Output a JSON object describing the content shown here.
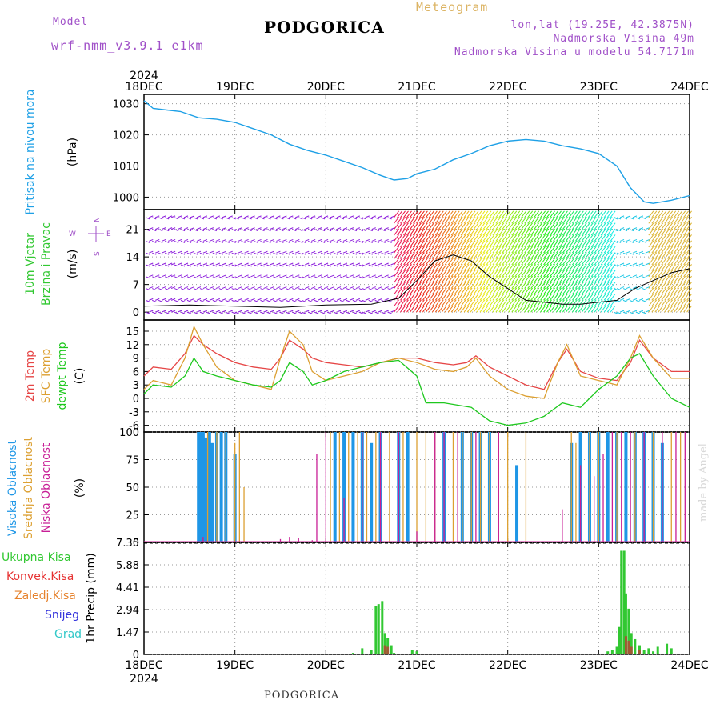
{
  "header": {
    "model_label": "Model",
    "model_name": "wrf-nmm_v3.9.1 e1km",
    "title": "PODGORICA",
    "meteogram": "Meteogram",
    "lonlat": "lon,lat (19.25E, 42.3875N)",
    "elevation": "Nadmorska Visina 49m",
    "model_elevation": "Nadmorska Visina u modelu 54.7171m",
    "footer_title": "PODGORICA",
    "watermark": "made by Angel"
  },
  "colors": {
    "pressure": "#1ea0e6",
    "temp2m": "#e64646",
    "sfc": "#dca032",
    "dewpt": "#1ec81e",
    "high_cloud": "#1e96e6",
    "mid_cloud": "#dca032",
    "low_cloud": "#c81e96",
    "wind_calm": "#8c1edc",
    "total_precip": "#32c832",
    "conv_precip": "#e63232",
    "frozen_precip": "#e6822d",
    "snow": "#3232dc",
    "grad": "#32c8c8",
    "header_purple": "#a050c8",
    "header_orange": "#dcb464"
  },
  "chart_data": [
    {
      "type": "line",
      "panel": "pressure",
      "ylabel": [
        "Pritisak na nivou mora",
        "(hPa)"
      ],
      "x_year": "2024",
      "x_ticks": [
        "18DEC",
        "19DEC",
        "20DEC",
        "21DEC",
        "22DEC",
        "23DEC",
        "24DEC"
      ],
      "x_range_days": [
        0,
        6
      ],
      "ylim": [
        996,
        1033
      ],
      "yticks": [
        1000,
        1010,
        1020,
        1030
      ],
      "series": [
        {
          "key": "pressure",
          "x": [
            0,
            0.1,
            0.25,
            0.4,
            0.6,
            0.8,
            1.0,
            1.2,
            1.4,
            1.6,
            1.8,
            2.0,
            2.2,
            2.4,
            2.6,
            2.75,
            2.9,
            3.0,
            3.2,
            3.4,
            3.6,
            3.8,
            4.0,
            4.2,
            4.4,
            4.6,
            4.8,
            5.0,
            5.2,
            5.35,
            5.5,
            5.6,
            5.8,
            6.0
          ],
          "y": [
            1031,
            1028.5,
            1028,
            1027.5,
            1025.5,
            1025,
            1024,
            1022,
            1020,
            1017,
            1015,
            1013.5,
            1011.5,
            1009.5,
            1007,
            1005.5,
            1006,
            1007.5,
            1009,
            1012,
            1014,
            1016.5,
            1018,
            1018.5,
            1018,
            1016.5,
            1015.5,
            1014,
            1010,
            1003,
            998.5,
            998,
            999,
            1000.5
          ]
        }
      ]
    },
    {
      "type": "line",
      "panel": "wind",
      "ylabel": [
        "10m Vjetar",
        "Brzina i Pravac",
        "(m/s)"
      ],
      "compass": [
        "N",
        "E",
        "S",
        "W"
      ],
      "ylim": [
        -2,
        26
      ],
      "yticks": [
        0,
        7,
        14,
        21
      ],
      "series": [
        {
          "key": "wind_speed",
          "x": [
            0,
            0.5,
            1.0,
            1.5,
            2.0,
            2.5,
            2.8,
            3.0,
            3.2,
            3.4,
            3.6,
            3.8,
            4.0,
            4.2,
            4.4,
            4.6,
            4.8,
            5.0,
            5.2,
            5.4,
            5.6,
            5.8,
            6.0
          ],
          "y": [
            1.5,
            1.8,
            1.5,
            1.2,
            1.8,
            2.0,
            3.5,
            8.0,
            13.0,
            14.5,
            13.0,
            9.0,
            6.0,
            3.0,
            2.5,
            2.0,
            2.0,
            2.5,
            3.0,
            6.0,
            8.0,
            10.0,
            11.0
          ]
        }
      ]
    },
    {
      "type": "line",
      "panel": "temperature",
      "ylabel": [
        "2m Temp",
        "SFC Temp",
        "dewpt Temp",
        "(C)"
      ],
      "ylim": [
        -7.5,
        17.5
      ],
      "yticks": [
        -6,
        -3,
        0,
        3,
        6,
        9,
        12,
        15
      ],
      "series": [
        {
          "key": "temp2m",
          "name": "2m Temp",
          "x": [
            0,
            0.1,
            0.3,
            0.45,
            0.55,
            0.65,
            0.8,
            1.0,
            1.2,
            1.4,
            1.5,
            1.6,
            1.75,
            1.85,
            2.0,
            2.2,
            2.4,
            2.6,
            2.8,
            3.0,
            3.2,
            3.4,
            3.55,
            3.65,
            3.8,
            4.0,
            4.2,
            4.4,
            4.55,
            4.65,
            4.8,
            5.0,
            5.2,
            5.35,
            5.45,
            5.6,
            5.8,
            6.0
          ],
          "y": [
            5,
            7,
            6.5,
            10,
            14,
            12,
            10,
            8,
            7,
            6.5,
            9,
            13,
            11,
            9,
            8,
            7.5,
            7,
            8,
            9,
            9,
            8,
            7.5,
            8,
            9.5,
            7,
            5,
            3,
            2,
            8,
            11,
            6,
            4.5,
            4,
            8,
            13,
            9,
            6,
            6
          ]
        },
        {
          "key": "sfc",
          "name": "SFC Temp",
          "x": [
            0,
            0.1,
            0.3,
            0.45,
            0.55,
            0.65,
            0.8,
            1.0,
            1.2,
            1.4,
            1.5,
            1.6,
            1.75,
            1.85,
            2.0,
            2.2,
            2.4,
            2.6,
            2.8,
            3.0,
            3.2,
            3.4,
            3.55,
            3.65,
            3.8,
            4.0,
            4.2,
            4.4,
            4.55,
            4.65,
            4.8,
            5.0,
            5.2,
            5.35,
            5.45,
            5.6,
            5.8,
            6.0
          ],
          "y": [
            2,
            4,
            3,
            9,
            16,
            12,
            7,
            4,
            3,
            2,
            9,
            15,
            12,
            6,
            4,
            5,
            6,
            8,
            9,
            8,
            6.5,
            6,
            7,
            9,
            5,
            2,
            0.5,
            0,
            8,
            12,
            5,
            4,
            3,
            9,
            14,
            9,
            4.5,
            4.5
          ]
        },
        {
          "key": "dewpt",
          "name": "dewpt Temp",
          "x": [
            0,
            0.1,
            0.3,
            0.45,
            0.55,
            0.65,
            0.8,
            1.0,
            1.2,
            1.4,
            1.5,
            1.6,
            1.75,
            1.85,
            2.0,
            2.2,
            2.4,
            2.6,
            2.8,
            3.0,
            3.1,
            3.3,
            3.6,
            3.8,
            4.0,
            4.2,
            4.4,
            4.6,
            4.8,
            5.0,
            5.2,
            5.35,
            5.45,
            5.6,
            5.8,
            6.0
          ],
          "y": [
            1,
            3,
            2.5,
            5,
            9,
            6,
            5,
            4,
            3,
            2.5,
            4,
            8,
            6,
            3,
            4,
            6,
            7,
            8,
            8.5,
            5,
            -1,
            -1,
            -2,
            -5,
            -6,
            -5.5,
            -4,
            -1,
            -2,
            2,
            5,
            9,
            10,
            5,
            0,
            -2
          ]
        }
      ]
    },
    {
      "type": "bar",
      "panel": "clouds",
      "ylabel": [
        "Visoka Oblacnost",
        "Srednja Oblacnost",
        "Niska Oblacnost",
        "(%)"
      ],
      "ylim": [
        0,
        100
      ],
      "yticks": [
        0,
        25,
        50,
        75,
        100
      ],
      "series": [
        {
          "key": "high_cloud",
          "name": "Visoka Oblacnost",
          "x": [
            0.6,
            0.62,
            0.65,
            0.68,
            0.72,
            0.75,
            0.8,
            0.85,
            0.9,
            1.0,
            2.1,
            2.2,
            2.3,
            2.4,
            2.5,
            2.6,
            2.8,
            2.9,
            3.3,
            3.5,
            3.6,
            3.7,
            3.8,
            4.1,
            4.7,
            4.8,
            4.9,
            5.0,
            5.1,
            5.2,
            5.3,
            5.4,
            5.5,
            5.6,
            5.7
          ],
          "values": [
            100,
            100,
            100,
            95,
            100,
            90,
            100,
            100,
            100,
            80,
            100,
            100,
            100,
            100,
            90,
            100,
            100,
            100,
            100,
            100,
            100,
            100,
            100,
            70,
            90,
            100,
            100,
            100,
            100,
            100,
            100,
            100,
            100,
            100,
            90
          ]
        },
        {
          "key": "mid_cloud",
          "name": "Srednja Oblacnost",
          "x": [
            0.7,
            0.8,
            0.9,
            1.0,
            1.05,
            1.1,
            2.05,
            2.15,
            2.25,
            2.35,
            2.45,
            2.55,
            2.7,
            2.85,
            3.0,
            3.1,
            3.2,
            3.4,
            3.5,
            3.6,
            3.7,
            3.8,
            3.9,
            4.0,
            4.2,
            4.7,
            4.75,
            4.9,
            5.0,
            5.2,
            5.4,
            5.6,
            5.8,
            5.9
          ],
          "values": [
            100,
            100,
            100,
            90,
            100,
            50,
            100,
            100,
            100,
            100,
            100,
            100,
            100,
            100,
            100,
            100,
            100,
            100,
            100,
            100,
            100,
            100,
            100,
            100,
            100,
            100,
            90,
            100,
            100,
            100,
            100,
            100,
            100,
            100
          ]
        },
        {
          "key": "low_cloud",
          "name": "Niska Oblacnost",
          "x": [
            0.65,
            1.5,
            1.6,
            1.7,
            1.85,
            1.9,
            2.0,
            2.2,
            2.4,
            2.6,
            2.8,
            3.0,
            3.2,
            3.3,
            3.45,
            3.65,
            3.9,
            4.6,
            4.8,
            4.95,
            5.05,
            5.15,
            5.25,
            5.35,
            5.5,
            5.7,
            5.85,
            5.95
          ],
          "values": [
            5,
            3,
            5,
            4,
            2,
            80,
            100,
            40,
            100,
            100,
            100,
            10,
            100,
            100,
            100,
            100,
            100,
            30,
            70,
            60,
            80,
            100,
            100,
            100,
            100,
            100,
            100,
            100
          ]
        }
      ]
    },
    {
      "type": "bar",
      "panel": "precipitation",
      "ylabel": [
        "1hr Precip (mm)"
      ],
      "legend": [
        "Ukupna Kisa",
        "Konvek.Kisa",
        "Zaledj.Kisa",
        "Snijeg",
        "Grad"
      ],
      "ylim": [
        0,
        7.35
      ],
      "yticks": [
        0,
        1.47,
        2.94,
        4.41,
        5.88,
        7.35
      ],
      "series": [
        {
          "key": "total_precip",
          "name": "Ukupna Kisa",
          "x": [
            2.25,
            2.3,
            2.4,
            2.5,
            2.55,
            2.58,
            2.62,
            2.65,
            2.68,
            2.72,
            2.75,
            2.95,
            3.0,
            5.1,
            5.15,
            5.2,
            5.23,
            5.25,
            5.28,
            5.3,
            5.33,
            5.36,
            5.4,
            5.45,
            5.5,
            5.55,
            5.6,
            5.65,
            5.75,
            5.8
          ],
          "values": [
            0.05,
            0.1,
            0.4,
            0.3,
            3.2,
            3.3,
            3.5,
            1.4,
            1.1,
            0.6,
            0.1,
            0.3,
            0.2,
            0.2,
            0.3,
            0.5,
            1.8,
            6.8,
            6.8,
            4.0,
            3.0,
            1.4,
            1.0,
            0.6,
            0.3,
            0.4,
            0.2,
            0.5,
            0.7,
            0.4
          ]
        },
        {
          "key": "conv_precip",
          "name": "Konvek.Kisa",
          "x": [
            2.65,
            2.68,
            5.3,
            5.33,
            5.36,
            5.45
          ],
          "values": [
            0.6,
            0.5,
            1.2,
            0.9,
            0.5,
            0.3
          ]
        }
      ]
    }
  ]
}
